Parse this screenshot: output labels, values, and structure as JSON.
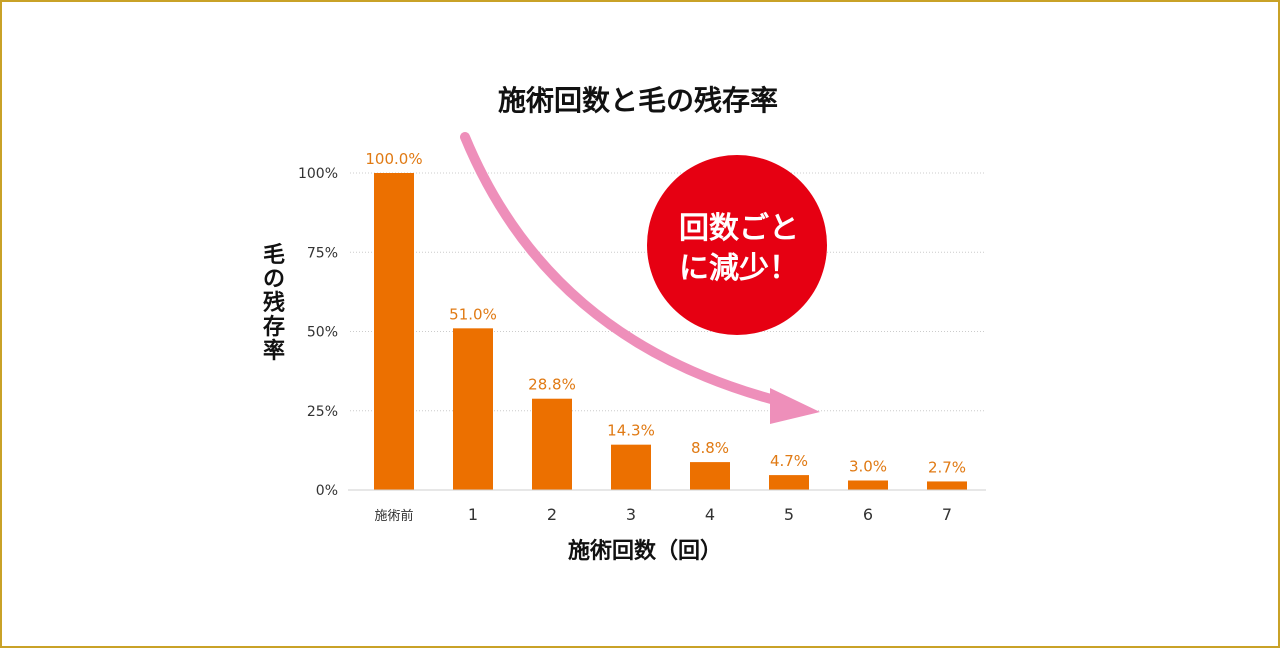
{
  "chart_data": {
    "type": "bar",
    "title": "施術回数と毛の残存率",
    "xlabel": "施術回数（回）",
    "ylabel": "毛の残存率",
    "categories": [
      "施術前",
      "1",
      "2",
      "3",
      "4",
      "5",
      "6",
      "7"
    ],
    "values": [
      100.0,
      51.0,
      28.8,
      14.3,
      8.8,
      4.7,
      3.0,
      2.7
    ],
    "value_labels": [
      "100.0%",
      "51.0%",
      "28.8%",
      "14.3%",
      "8.8%",
      "4.7%",
      "3.0%",
      "2.7%"
    ],
    "yticks": [
      0,
      25,
      50,
      75,
      100
    ],
    "ytick_labels": [
      "0%",
      "25%",
      "50%",
      "75%",
      "100%"
    ],
    "ylim": [
      0,
      100
    ],
    "grid": true,
    "bar_color": "#ec7000",
    "label_color": "#e07a14",
    "annotation": {
      "lines": [
        "回数ごと",
        "に減少！"
      ],
      "circle_color": "#e60012",
      "arrow_color": "#ee8fba"
    }
  }
}
